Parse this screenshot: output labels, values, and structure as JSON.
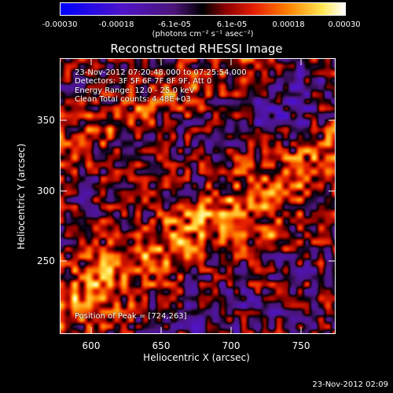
{
  "colorbar": {
    "tick_labels": [
      "-0.00030",
      "-0.00018",
      "-6.1e-05",
      "6.1e-05",
      "0.00018",
      "0.00030"
    ],
    "range": [
      -0.0003,
      0.0003
    ],
    "units": "(photons cm⁻² s⁻¹ asec⁻²)"
  },
  "image": {
    "title": "Reconstructed RHESSI Image",
    "info_lines": [
      "23-Nov-2012 07:20:48.000 to 07:25:54.000",
      "Detectors: 3F 5F 6F 7F 8F 9F, Att 0",
      "Energy Range: 12.0 - 25.0 keV",
      "Clean    Total counts: 4.48E+03"
    ],
    "peak_text": "Position of Peak = [724,263]"
  },
  "axes": {
    "x_title": "Heliocentric X (arcsec)",
    "y_title": "Heliocentric Y (arcsec)",
    "x_ticks": [
      "600",
      "650",
      "700",
      "750"
    ],
    "y_ticks": [
      "250",
      "300",
      "350"
    ],
    "x_range": [
      578,
      771
    ],
    "y_range": [
      200,
      393
    ]
  },
  "footer": {
    "timestamp": "23-Nov-2012 02:09"
  }
}
